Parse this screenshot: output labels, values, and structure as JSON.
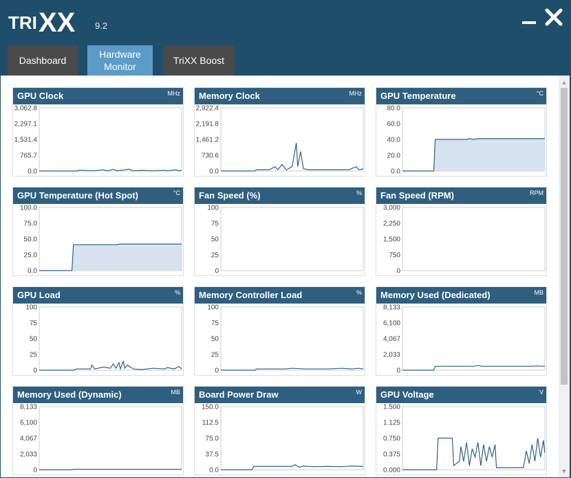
{
  "app": {
    "version": "9.2",
    "tabs": [
      {
        "label": "Dashboard"
      },
      {
        "label": "Hardware Monitor"
      },
      {
        "label": "TriXX Boost"
      }
    ]
  },
  "colors": {
    "header": "#1f4e6b",
    "panel_header": "#2f5f7f",
    "active_tab": "#5b9bc7",
    "inactive_tab": "#4a4a4a",
    "line": "#2e5f86",
    "fill": "#d6e2ef"
  },
  "monitors": [
    {
      "title": "GPU Clock",
      "unit": "MHz",
      "ticks": [
        "3,062.8",
        "2,297.1",
        "1,531.4",
        "765.7",
        "0.0"
      ],
      "ymax": 3062.8,
      "chart_data": {
        "type": "line",
        "points": [
          [
            0,
            0
          ],
          [
            0.27,
            0
          ],
          [
            0.28,
            40
          ],
          [
            0.38,
            10
          ],
          [
            0.45,
            60
          ],
          [
            0.48,
            5
          ],
          [
            0.52,
            80
          ],
          [
            0.55,
            10
          ],
          [
            0.6,
            60
          ],
          [
            0.63,
            90
          ],
          [
            0.66,
            10
          ],
          [
            0.72,
            30
          ],
          [
            0.8,
            5
          ],
          [
            0.88,
            40
          ],
          [
            0.9,
            5
          ],
          [
            0.96,
            60
          ],
          [
            0.98,
            5
          ],
          [
            1,
            30
          ]
        ]
      }
    },
    {
      "title": "Memory Clock",
      "unit": "MHz",
      "ticks": [
        "2,922.4",
        "2,191.8",
        "1,461.2",
        "730.6",
        "0.0"
      ],
      "ymax": 2922.4,
      "chart_data": {
        "type": "line",
        "points": [
          [
            0,
            0
          ],
          [
            0.24,
            0
          ],
          [
            0.25,
            60
          ],
          [
            0.34,
            60
          ],
          [
            0.38,
            200
          ],
          [
            0.4,
            60
          ],
          [
            0.43,
            300
          ],
          [
            0.46,
            50
          ],
          [
            0.5,
            200
          ],
          [
            0.52,
            900
          ],
          [
            0.53,
            1300
          ],
          [
            0.54,
            200
          ],
          [
            0.56,
            900
          ],
          [
            0.58,
            100
          ],
          [
            0.62,
            60
          ],
          [
            0.9,
            60
          ],
          [
            0.95,
            200
          ],
          [
            0.97,
            60
          ],
          [
            1,
            100
          ]
        ]
      }
    },
    {
      "title": "GPU Temperature",
      "unit": "°C",
      "ticks": [
        "80.0",
        "60.0",
        "40.0",
        "20.0",
        "0.0"
      ],
      "ymax": 80,
      "chart_data": {
        "type": "area",
        "points": [
          [
            0,
            0
          ],
          [
            0.22,
            0
          ],
          [
            0.23,
            40
          ],
          [
            0.45,
            40
          ],
          [
            0.47,
            41
          ],
          [
            0.5,
            40
          ],
          [
            0.53,
            41
          ],
          [
            1,
            41
          ]
        ]
      }
    },
    {
      "title": "GPU Temperature (Hot Spot)",
      "unit": "°C",
      "ticks": [
        "100.0",
        "75.0",
        "50.0",
        "25.0",
        "0.0"
      ],
      "ymax": 100,
      "chart_data": {
        "type": "area",
        "points": [
          [
            0,
            0
          ],
          [
            0.23,
            0
          ],
          [
            0.24,
            41
          ],
          [
            0.55,
            41
          ],
          [
            0.56,
            42
          ],
          [
            1,
            42
          ]
        ]
      }
    },
    {
      "title": "Fan Speed (%)",
      "unit": "%",
      "ticks": [
        "100",
        "75",
        "50",
        "25",
        "0"
      ],
      "ymax": 100,
      "chart_data": {
        "type": "line",
        "points": []
      }
    },
    {
      "title": "Fan Speed (RPM)",
      "unit": "RPM",
      "ticks": [
        "3,000",
        "2,250",
        "1,500",
        "750",
        "0"
      ],
      "ymax": 3000,
      "chart_data": {
        "type": "line",
        "points": []
      }
    },
    {
      "title": "GPU Load",
      "unit": "%",
      "ticks": [
        "100",
        "75",
        "50",
        "25",
        "0"
      ],
      "ymax": 100,
      "chart_data": {
        "type": "line",
        "points": [
          [
            0,
            0
          ],
          [
            0.24,
            0
          ],
          [
            0.26,
            2
          ],
          [
            0.36,
            2
          ],
          [
            0.37,
            8
          ],
          [
            0.39,
            2
          ],
          [
            0.45,
            5
          ],
          [
            0.5,
            3
          ],
          [
            0.52,
            10
          ],
          [
            0.54,
            3
          ],
          [
            0.56,
            12
          ],
          [
            0.57,
            2
          ],
          [
            0.59,
            14
          ],
          [
            0.6,
            3
          ],
          [
            0.62,
            8
          ],
          [
            0.66,
            2
          ],
          [
            0.72,
            1
          ],
          [
            0.8,
            3
          ],
          [
            0.88,
            2
          ],
          [
            0.9,
            4
          ],
          [
            0.95,
            2
          ],
          [
            0.98,
            6
          ],
          [
            1,
            2
          ]
        ]
      }
    },
    {
      "title": "Memory Controller Load",
      "unit": "%",
      "ticks": [
        "100",
        "75",
        "50",
        "25",
        "0"
      ],
      "ymax": 100,
      "chart_data": {
        "type": "line",
        "points": [
          [
            0,
            0
          ],
          [
            0.24,
            0
          ],
          [
            0.25,
            2
          ],
          [
            0.45,
            2
          ],
          [
            0.5,
            3
          ],
          [
            0.6,
            2
          ],
          [
            0.75,
            2
          ],
          [
            0.85,
            3
          ],
          [
            0.92,
            2
          ],
          [
            0.97,
            3
          ],
          [
            1,
            2
          ]
        ]
      }
    },
    {
      "title": "Memory Used (Dedicated)",
      "unit": "MB",
      "ticks": [
        "8,133",
        "6,100",
        "4,067",
        "2,033",
        "0"
      ],
      "ymax": 8133,
      "chart_data": {
        "type": "line",
        "points": [
          [
            0,
            0
          ],
          [
            0.22,
            0
          ],
          [
            0.23,
            500
          ],
          [
            0.5,
            500
          ],
          [
            0.53,
            600
          ],
          [
            0.56,
            500
          ],
          [
            0.9,
            500
          ],
          [
            0.95,
            550
          ],
          [
            1,
            500
          ]
        ]
      }
    },
    {
      "title": "Memory Used (Dynamic)",
      "unit": "MB",
      "ticks": [
        "8,133",
        "6,100",
        "4,067",
        "2,033",
        "0"
      ],
      "ymax": 8133,
      "chart_data": {
        "type": "line",
        "points": [
          [
            0,
            0
          ],
          [
            0.23,
            0
          ],
          [
            0.24,
            60
          ],
          [
            1,
            60
          ]
        ]
      }
    },
    {
      "title": "Board Power Draw",
      "unit": "W",
      "ticks": [
        "150.0",
        "112.5",
        "75.0",
        "37.5",
        "0.0"
      ],
      "ymax": 150,
      "chart_data": {
        "type": "line",
        "points": [
          [
            0,
            0
          ],
          [
            0.22,
            0
          ],
          [
            0.23,
            8
          ],
          [
            0.5,
            8
          ],
          [
            0.52,
            12
          ],
          [
            0.55,
            6
          ],
          [
            0.58,
            9
          ],
          [
            0.65,
            7
          ],
          [
            0.75,
            8
          ],
          [
            0.85,
            7
          ],
          [
            0.92,
            9
          ],
          [
            1,
            8
          ]
        ]
      }
    },
    {
      "title": "GPU Voltage",
      "unit": "V",
      "ticks": [
        "1.500",
        "1.125",
        "0.750",
        "0.375",
        "0.000"
      ],
      "ymax": 1.5,
      "chart_data": {
        "type": "line",
        "points": [
          [
            0,
            0
          ],
          [
            0.24,
            0
          ],
          [
            0.25,
            0.75
          ],
          [
            0.35,
            0.75
          ],
          [
            0.36,
            0.1
          ],
          [
            0.4,
            0.2
          ],
          [
            0.41,
            0.55
          ],
          [
            0.43,
            0.2
          ],
          [
            0.45,
            0.65
          ],
          [
            0.47,
            0.1
          ],
          [
            0.49,
            0.5
          ],
          [
            0.51,
            0.3
          ],
          [
            0.53,
            0.65
          ],
          [
            0.55,
            0.1
          ],
          [
            0.57,
            0.6
          ],
          [
            0.59,
            0.2
          ],
          [
            0.61,
            0.55
          ],
          [
            0.63,
            0.3
          ],
          [
            0.65,
            0.6
          ],
          [
            0.66,
            0.05
          ],
          [
            0.7,
            0.05
          ],
          [
            0.75,
            0.05
          ],
          [
            0.8,
            0.05
          ],
          [
            0.85,
            0.05
          ],
          [
            0.87,
            0.45
          ],
          [
            0.89,
            0.15
          ],
          [
            0.91,
            0.6
          ],
          [
            0.93,
            0.2
          ],
          [
            0.95,
            0.75
          ],
          [
            0.97,
            0.3
          ],
          [
            0.99,
            0.7
          ],
          [
            1,
            0.4
          ]
        ]
      }
    }
  ]
}
